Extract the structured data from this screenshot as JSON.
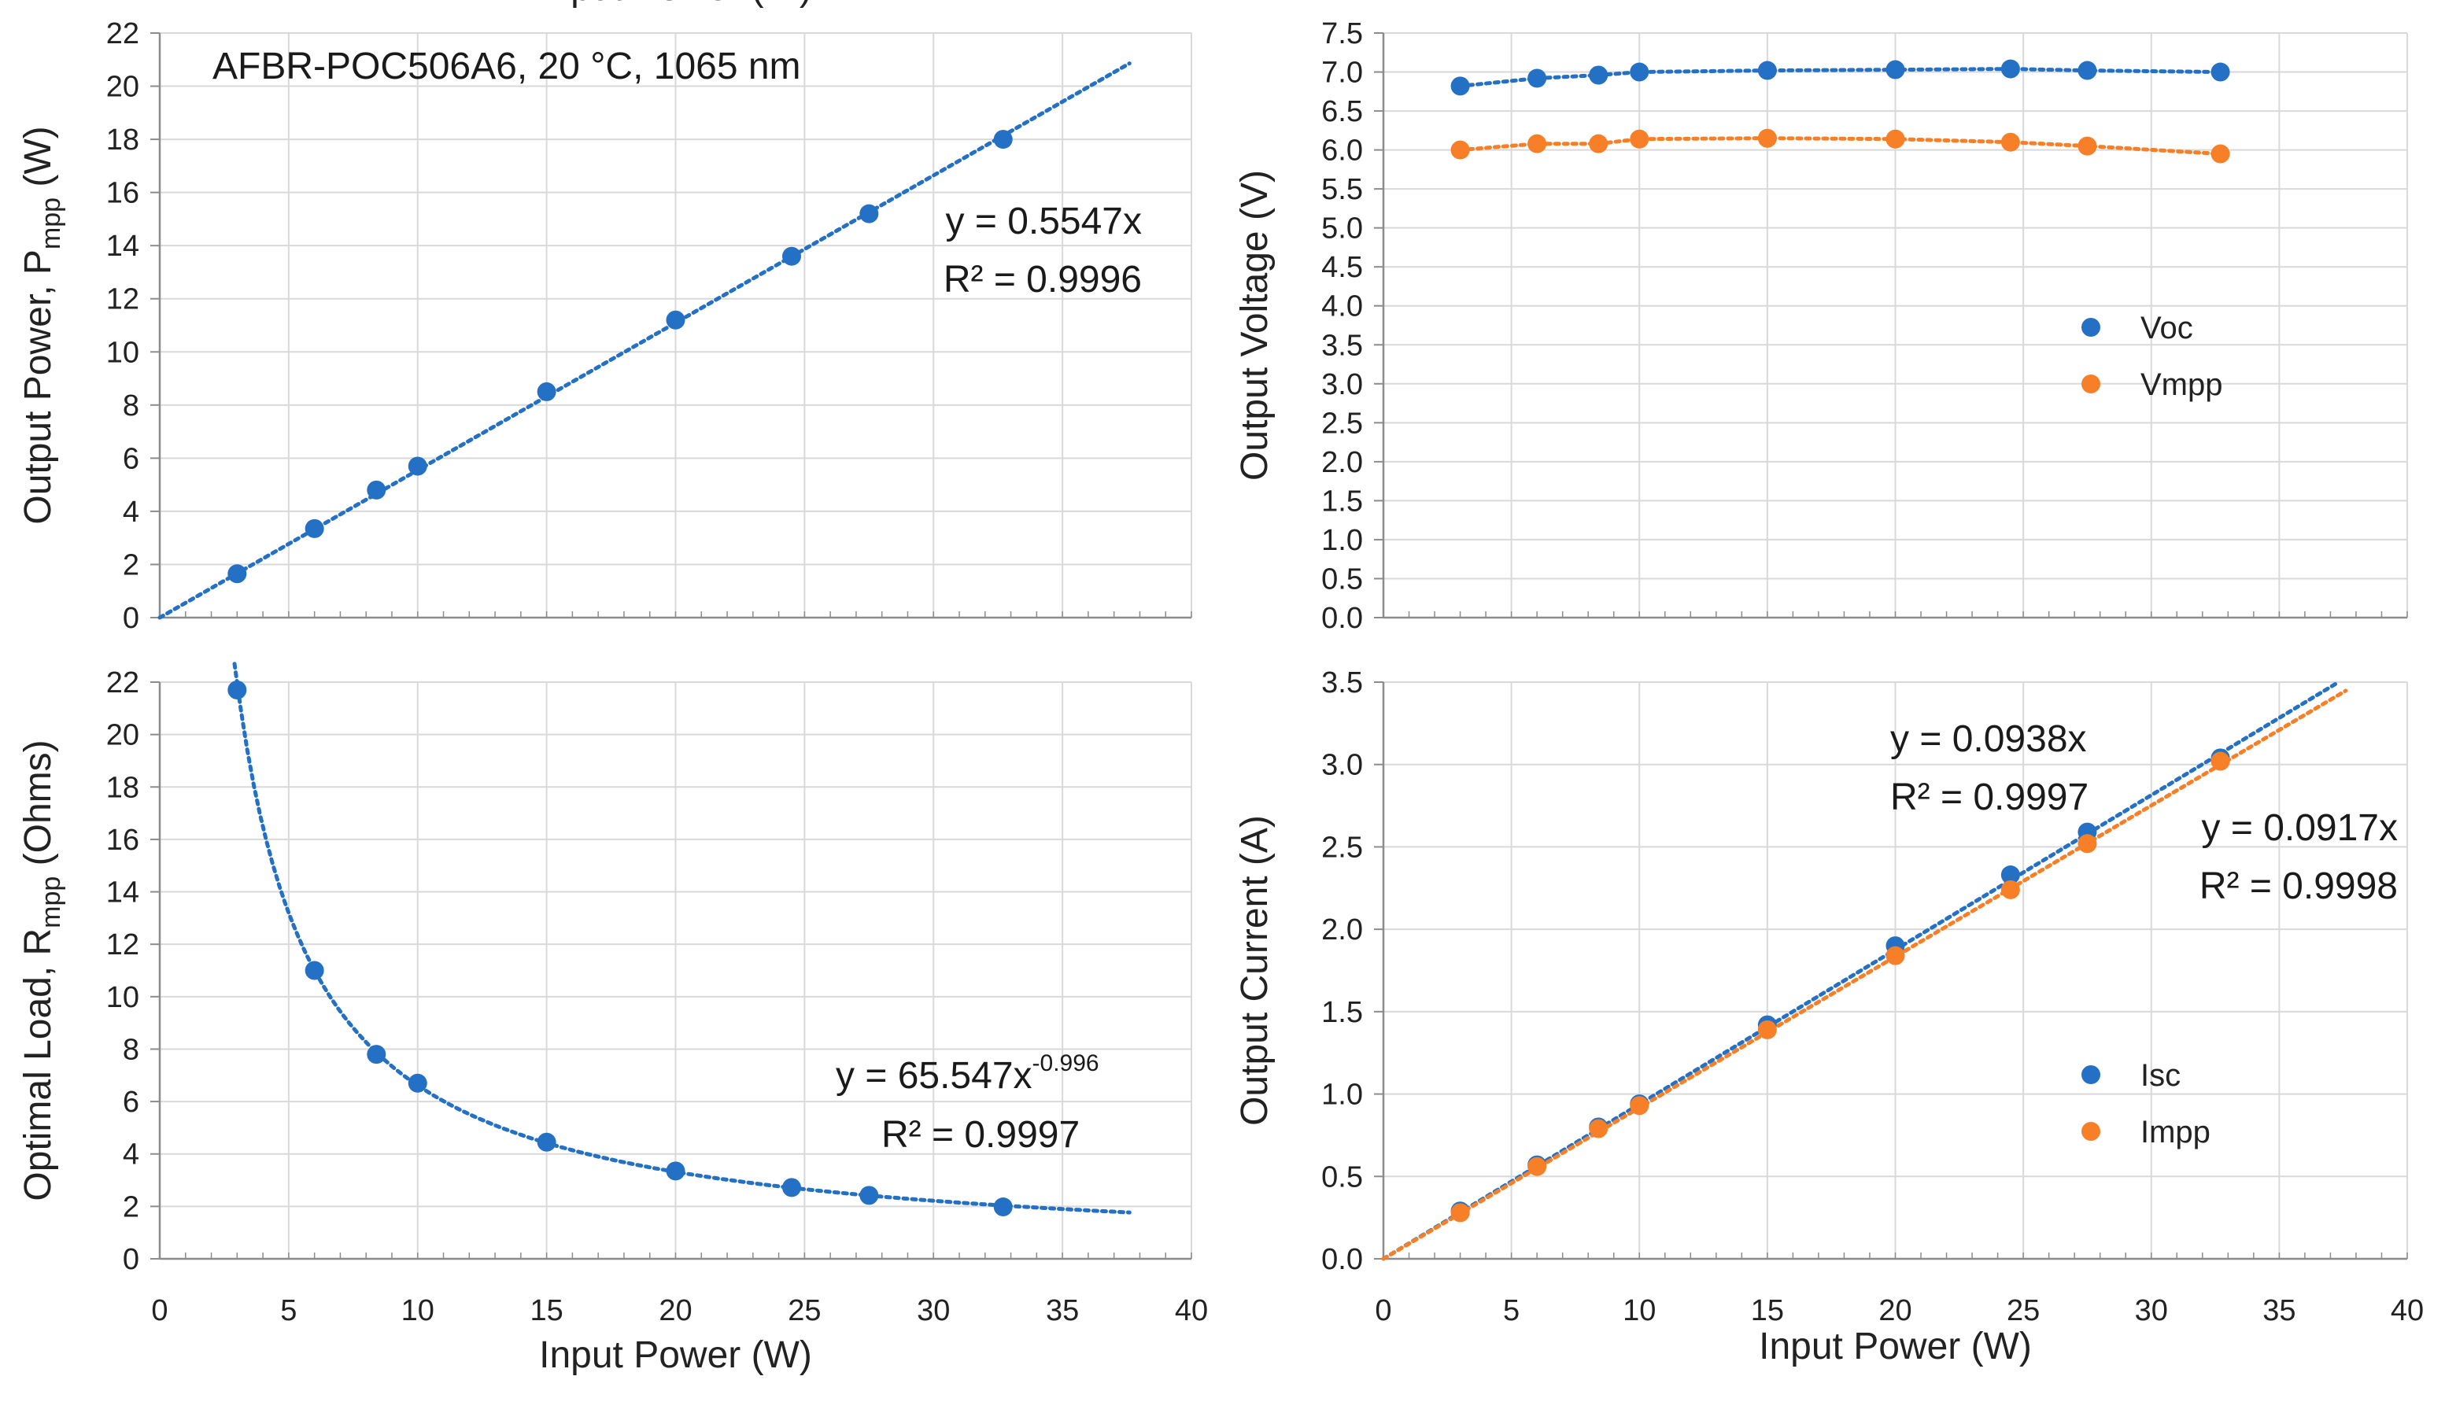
{
  "colors": {
    "blue": "#2470c4",
    "orange": "#f77f27",
    "navy": "#1f2d74",
    "dark_orange": "#e46c0a",
    "grid": "#d9d9d9",
    "axis": "#8c8c8c"
  },
  "chart_data": [
    {
      "id": "pmpp",
      "type": "scatter",
      "title": "AFBR-POC506A6, 20 °C, 1065 nm",
      "xlabel": "Input Power (W)",
      "ylabel": "Output Power, Pmpp (W)",
      "ylabel_main": "Output Power, P",
      "ylabel_sub": "mpp",
      "ylabel_tail": " (W)",
      "xlim": [
        0,
        40
      ],
      "ylim": [
        0,
        22
      ],
      "xticks": [
        0,
        5,
        10,
        15,
        20,
        25,
        30,
        35,
        40
      ],
      "xticks_shown": false,
      "yticks": [
        0,
        2,
        4,
        6,
        8,
        10,
        12,
        14,
        16,
        18,
        20,
        22
      ],
      "ytick_labels": [
        "0",
        "2",
        "4",
        "6",
        "8",
        "10",
        "12",
        "14",
        "16",
        "18",
        "20",
        "22"
      ],
      "series": [
        {
          "name": "Pmpp",
          "color": "#2470c4",
          "x": [
            3,
            6,
            8.4,
            10,
            15,
            20,
            24.5,
            27.5,
            32.7
          ],
          "y": [
            1.65,
            3.35,
            4.8,
            5.7,
            8.5,
            11.2,
            13.6,
            15.2,
            18.0
          ],
          "trend": {
            "kind": "linear",
            "slope": 0.5547,
            "x_from": 0,
            "x_to": 37.6
          }
        }
      ],
      "annotations": [
        {
          "text": "y = 0.5547x",
          "color": "#1a1a1a"
        },
        {
          "text": "R² = 0.9996",
          "color": "#1a1a1a"
        }
      ]
    },
    {
      "id": "voltage",
      "type": "scatter",
      "xlabel": "",
      "ylabel": "Output Voltage (V)",
      "xlim": [
        0,
        40
      ],
      "ylim": [
        0,
        7.5
      ],
      "xticks": [
        0,
        5,
        10,
        15,
        20,
        25,
        30,
        35,
        40
      ],
      "xticks_shown": false,
      "yticks": [
        0,
        0.5,
        1,
        1.5,
        2,
        2.5,
        3,
        3.5,
        4,
        4.5,
        5,
        5.5,
        6,
        6.5,
        7,
        7.5
      ],
      "ytick_labels": [
        "0.0",
        "0.5",
        "1.0",
        "1.5",
        "2.0",
        "2.5",
        "3.0",
        "3.5",
        "4.0",
        "4.5",
        "5.0",
        "5.5",
        "6.0",
        "6.5",
        "7.0",
        "7.5"
      ],
      "legend": "center-right",
      "series": [
        {
          "name": "Voc",
          "color": "#2470c4",
          "x": [
            3,
            6,
            8.4,
            10,
            15,
            20,
            24.5,
            27.5,
            32.7
          ],
          "y": [
            6.82,
            6.92,
            6.96,
            7.0,
            7.02,
            7.03,
            7.04,
            7.02,
            7.0
          ],
          "trend": {
            "kind": "connect"
          }
        },
        {
          "name": "Vmpp",
          "color": "#f77f27",
          "x": [
            3,
            6,
            8.4,
            10,
            15,
            20,
            24.5,
            27.5,
            32.7
          ],
          "y": [
            6.0,
            6.08,
            6.08,
            6.14,
            6.15,
            6.14,
            6.1,
            6.05,
            5.95
          ],
          "trend": {
            "kind": "connect"
          }
        }
      ],
      "annotations": []
    },
    {
      "id": "rmpp",
      "type": "scatter",
      "xlabel": "Input Power (W)",
      "ylabel": "Optimal Load, Rmpp (Ohms)",
      "ylabel_main": "Optimal Load, R",
      "ylabel_sub": "mpp",
      "ylabel_tail": " (Ohms)",
      "xlim": [
        0,
        40
      ],
      "ylim": [
        0,
        22
      ],
      "xticks": [
        0,
        5,
        10,
        15,
        20,
        25,
        30,
        35,
        40
      ],
      "xtick_labels": [
        "0",
        "5",
        "10",
        "15",
        "20",
        "25",
        "30",
        "35",
        "40"
      ],
      "xticks_shown": true,
      "yticks": [
        0,
        2,
        4,
        6,
        8,
        10,
        12,
        14,
        16,
        18,
        20,
        22
      ],
      "ytick_labels": [
        "0",
        "2",
        "4",
        "6",
        "8",
        "10",
        "12",
        "14",
        "16",
        "18",
        "20",
        "22"
      ],
      "series": [
        {
          "name": "Rmpp",
          "color": "#2470c4",
          "x": [
            3,
            6,
            8.4,
            10,
            15,
            20,
            24.5,
            27.5,
            32.7
          ],
          "y": [
            21.7,
            11.0,
            7.8,
            6.7,
            4.45,
            3.35,
            2.72,
            2.42,
            1.98
          ],
          "trend": {
            "kind": "power",
            "a": 65.547,
            "b": -0.996,
            "x_from": 2.9,
            "x_to": 37.6
          }
        }
      ],
      "annotations": [
        {
          "text": "y = 65.547x",
          "sup": "-0.996",
          "color": "#1a1a1a"
        },
        {
          "text": "R² = 0.9997",
          "color": "#1a1a1a"
        }
      ]
    },
    {
      "id": "current",
      "type": "scatter",
      "xlabel": "Input Power (W)",
      "ylabel": "Output Current (A)",
      "xlim": [
        0,
        40
      ],
      "ylim": [
        0,
        3.5
      ],
      "xticks": [
        0,
        5,
        10,
        15,
        20,
        25,
        30,
        35,
        40
      ],
      "xtick_labels": [
        "0",
        "5",
        "10",
        "15",
        "20",
        "25",
        "30",
        "35",
        "40"
      ],
      "xticks_shown": true,
      "yticks": [
        0,
        0.5,
        1,
        1.5,
        2,
        2.5,
        3,
        3.5
      ],
      "ytick_labels": [
        "0.0",
        "0.5",
        "1.0",
        "1.5",
        "2.0",
        "2.5",
        "3.0",
        "3.5"
      ],
      "legend": "bottom-right",
      "series": [
        {
          "name": "Isc",
          "color": "#2470c4",
          "x": [
            3,
            6,
            8.4,
            10,
            15,
            20,
            24.5,
            27.5,
            32.7
          ],
          "y": [
            0.29,
            0.57,
            0.8,
            0.94,
            1.42,
            1.9,
            2.33,
            2.59,
            3.04
          ],
          "trend": {
            "kind": "linear",
            "slope": 0.0938,
            "x_from": 0,
            "x_to": 37.3
          }
        },
        {
          "name": "Impp",
          "color": "#f77f27",
          "x": [
            3,
            6,
            8.4,
            10,
            15,
            20,
            24.5,
            27.5,
            32.7
          ],
          "y": [
            0.28,
            0.56,
            0.79,
            0.93,
            1.39,
            1.84,
            2.24,
            2.52,
            3.02
          ],
          "trend": {
            "kind": "linear",
            "slope": 0.0917,
            "x_from": 0,
            "x_to": 37.6
          }
        }
      ],
      "annotations": [
        {
          "text": "y = 0.0938x",
          "color": "#1f2d74"
        },
        {
          "text": "R² = 0.9997",
          "color": "#1f2d74"
        },
        {
          "text": "y = 0.0917x",
          "color": "#e46c0a"
        },
        {
          "text": "R² = 0.9998",
          "color": "#e46c0a"
        }
      ]
    }
  ]
}
